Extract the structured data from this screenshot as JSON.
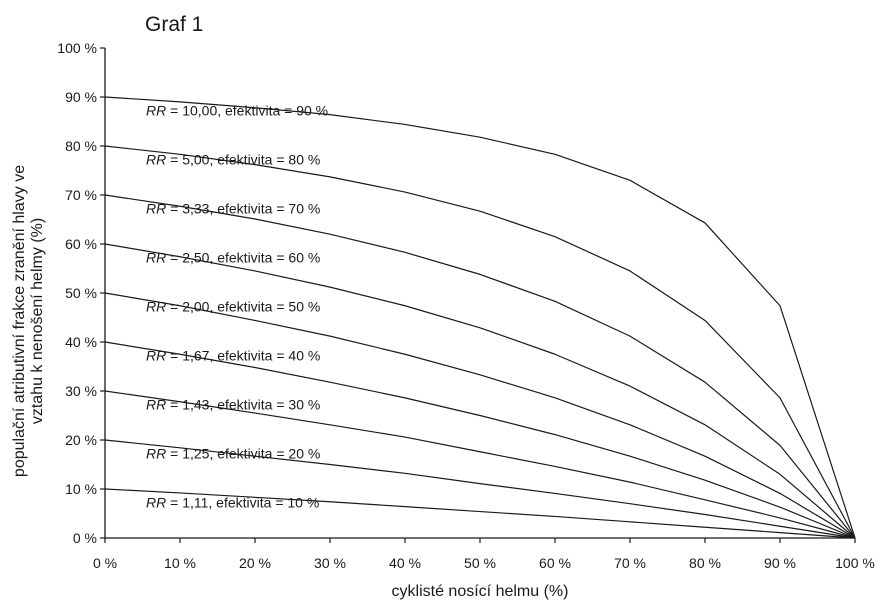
{
  "chart_data": {
    "type": "line",
    "title": "Graf 1",
    "xlabel": "cyklisté nosící helmu (%)",
    "ylabel_lines": [
      "populační atributivní frakce zranění hlavy ve",
      "vztahu k nenošení helmy (%)"
    ],
    "x": [
      0,
      10,
      20,
      30,
      40,
      50,
      60,
      70,
      80,
      90,
      100
    ],
    "x_tick_labels": [
      "0 %",
      "10 %",
      "20 %",
      "30 %",
      "40 %",
      "50 %",
      "60 %",
      "70 %",
      "80 %",
      "90 %",
      "100 %"
    ],
    "y_tick_labels": [
      "0 %",
      "10 %",
      "20 %",
      "30 %",
      "40 %",
      "50 %",
      "60 %",
      "70 %",
      "80 %",
      "90 %",
      "100 %"
    ],
    "xlim": [
      0,
      100
    ],
    "ylim": [
      0,
      100
    ],
    "grid": false,
    "series_label_text": ", efektivita = ",
    "series": [
      {
        "rr": "RR",
        "rr_value": "10,00",
        "effectivity": "90 %",
        "values": [
          90,
          89,
          87.8,
          86.4,
          84.4,
          81.8,
          78.3,
          73,
          64.3,
          47.4,
          0
        ]
      },
      {
        "rr": "RR",
        "rr_value": "5,00",
        "effectivity": "80 %",
        "values": [
          80,
          78.3,
          76.2,
          73.7,
          70.6,
          66.7,
          61.5,
          54.5,
          44.4,
          28.6,
          0
        ]
      },
      {
        "rr": "RR",
        "rr_value": "3,33",
        "effectivity": "70 %",
        "values": [
          70,
          67.7,
          65.1,
          62,
          58.3,
          53.8,
          48.3,
          41.2,
          31.8,
          18.9,
          0
        ]
      },
      {
        "rr": "RR",
        "rr_value": "2,50",
        "effectivity": "60 %",
        "values": [
          60,
          57.4,
          54.5,
          51.2,
          47.4,
          42.9,
          37.5,
          31,
          23.1,
          13,
          0
        ]
      },
      {
        "rr": "RR",
        "rr_value": "2,00",
        "effectivity": "50 %",
        "values": [
          50,
          47.4,
          44.4,
          41.2,
          37.5,
          33.3,
          28.6,
          23.1,
          16.7,
          9.1,
          0
        ]
      },
      {
        "rr": "RR",
        "rr_value": "1,67",
        "effectivity": "40 %",
        "values": [
          40,
          37.5,
          34.8,
          31.8,
          28.6,
          25,
          21.1,
          16.7,
          11.8,
          6.3,
          0
        ]
      },
      {
        "rr": "RR",
        "rr_value": "1,43",
        "effectivity": "30 %",
        "values": [
          30,
          27.8,
          25.5,
          23.1,
          20.6,
          17.6,
          14.6,
          11.4,
          7.8,
          4.1,
          0
        ]
      },
      {
        "rr": "RR",
        "rr_value": "1,25",
        "effectivity": "20 %",
        "values": [
          20,
          18.4,
          16.7,
          15,
          13.2,
          11.1,
          9.1,
          7,
          4.8,
          2.4,
          0
        ]
      },
      {
        "rr": "RR",
        "rr_value": "1,11",
        "effectivity": "10 %",
        "values": [
          10,
          9.2,
          8.3,
          7.4,
          6.4,
          5.4,
          4.4,
          3.3,
          2.2,
          1.1,
          0
        ]
      }
    ]
  }
}
